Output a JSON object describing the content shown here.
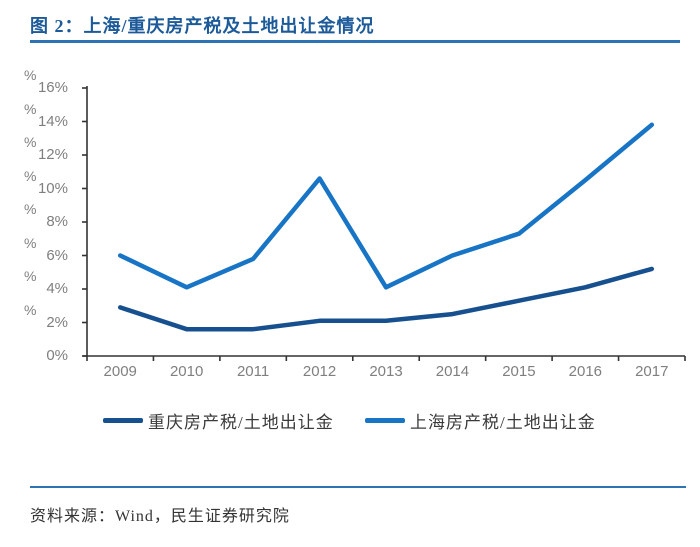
{
  "header": {
    "title": "图 2：上海/重庆房产税及土地出让金情况"
  },
  "chart_data": {
    "type": "line",
    "title": "上海/重庆房产税及土地出让金情况",
    "categories": [
      "2009",
      "2010",
      "2011",
      "2012",
      "2013",
      "2014",
      "2015",
      "2016",
      "2017"
    ],
    "series": [
      {
        "name": "重庆房产税/土地出让金",
        "color": "#17508F",
        "values": [
          2.9,
          1.6,
          1.6,
          2.1,
          2.1,
          2.5,
          3.3,
          4.1,
          5.2
        ]
      },
      {
        "name": "上海房产税/土地出让金",
        "color": "#1874C5",
        "values": [
          6.0,
          4.1,
          5.8,
          10.6,
          4.1,
          6.0,
          7.3,
          10.5,
          13.8
        ]
      }
    ],
    "xlabel": "",
    "ylabel": "%",
    "ylim": [
      0,
      16
    ],
    "ytick_step": 2,
    "ytick_suffix": "%",
    "stray_percent_marks": "%",
    "grid": false,
    "legend_position": "bottom",
    "axis_color": "#333333",
    "tick_label_color": "#7F7F7F"
  },
  "footer": {
    "source": "资料来源：Wind，民生证券研究院"
  },
  "colors": {
    "title_text": "#1C5A99",
    "rule_blue": "#2E74B5"
  }
}
